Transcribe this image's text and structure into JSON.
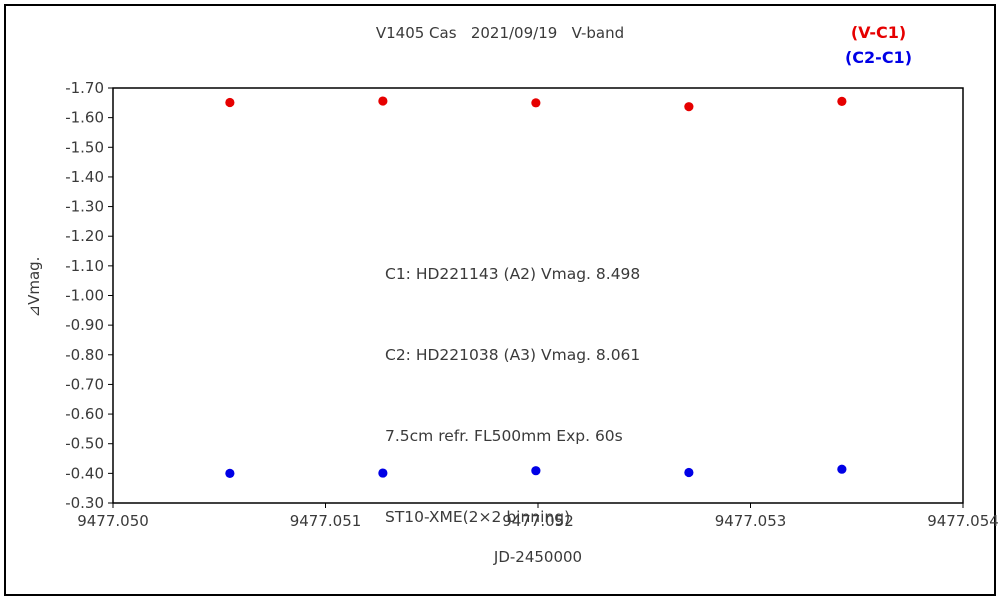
{
  "header": {
    "title": "V1405 Cas   2021/09/19   V-band"
  },
  "legend": {
    "items": [
      {
        "label": "(V-C1)",
        "color": "#e60000"
      },
      {
        "label": "(C2-C1)",
        "color": "#0000e6"
      }
    ]
  },
  "chart_data": {
    "type": "scatter",
    "title": "V1405 Cas 2021/09/19 V-band",
    "xlabel": "JD-2450000",
    "ylabel": "⊿Vmag.",
    "xlim": [
      9477.05,
      9477.054
    ],
    "ylim": [
      -1.7,
      -0.3
    ],
    "y_axis_direction": "inverted (negative magnitudes, -1.70 at top)",
    "grid": false,
    "legend_position": "top-right",
    "x_ticks": [
      "9477.050",
      "9477.051",
      "9477.052",
      "9477.053",
      "9477.054"
    ],
    "y_ticks": [
      "-1.70",
      "-1.60",
      "-1.50",
      "-1.40",
      "-1.30",
      "-1.20",
      "-1.10",
      "-1.00",
      "-0.90",
      "-0.80",
      "-0.70",
      "-0.60",
      "-0.50",
      "-0.40",
      "-0.30"
    ],
    "series": [
      {
        "name": "V-C1",
        "color": "#e60000",
        "points": [
          [
            9477.05055,
            -1.651
          ],
          [
            9477.05127,
            -1.656
          ],
          [
            9477.05199,
            -1.65
          ],
          [
            9477.05271,
            -1.637
          ],
          [
            9477.05343,
            -1.655
          ]
        ]
      },
      {
        "name": "C2-C1",
        "color": "#0000e6",
        "points": [
          [
            9477.05055,
            -0.4
          ],
          [
            9477.05127,
            -0.401
          ],
          [
            9477.05199,
            -0.409
          ],
          [
            9477.05271,
            -0.403
          ],
          [
            9477.05343,
            -0.414
          ]
        ]
      }
    ],
    "annotation_lines": [
      "C1: HD221143 (A2) Vmag. 8.498",
      "C2: HD221038 (A3) Vmag. 8.061",
      "7.5cm refr. FL500mm Exp. 60s",
      "ST10-XME(2×2 binning)"
    ]
  }
}
